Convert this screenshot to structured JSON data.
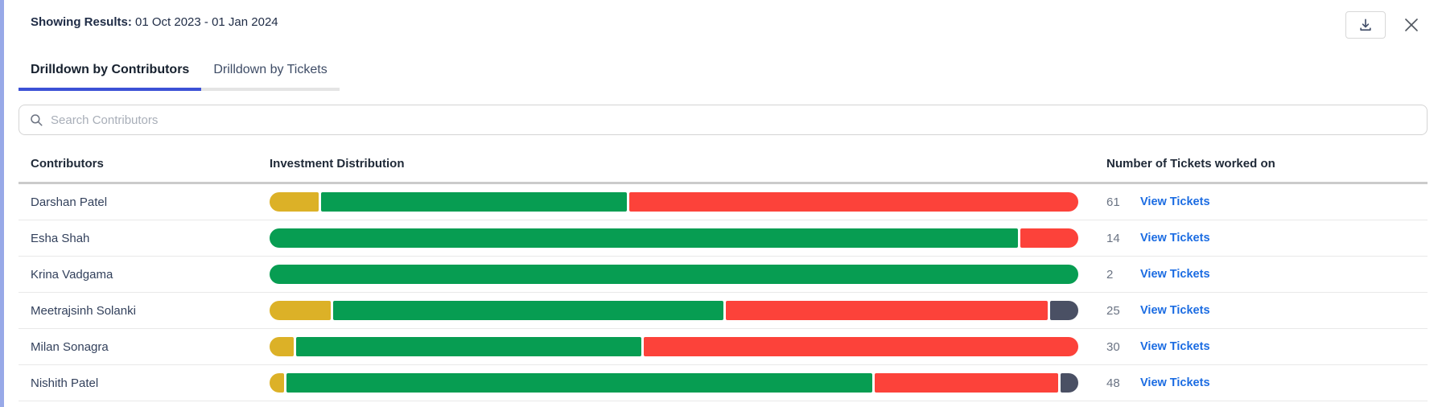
{
  "header": {
    "results_label": "Showing Results:",
    "results_value": "01 Oct 2023 - 01 Jan 2024"
  },
  "toolbar": {
    "download_icon": "download-icon",
    "close_icon": "close-icon"
  },
  "tabs": [
    {
      "label": "Drilldown by Contributors",
      "active": true
    },
    {
      "label": "Drilldown by Tickets",
      "active": false
    }
  ],
  "search": {
    "placeholder": "Search Contributors",
    "value": "",
    "icon": "search-icon"
  },
  "table": {
    "columns": {
      "contributors": "Contributors",
      "distribution": "Investment Distribution",
      "tickets": "Number of Tickets worked on"
    },
    "view_tickets_label": "View Tickets",
    "rows": [
      {
        "name": "Darshan Patel",
        "tickets": "61",
        "segments": [
          {
            "color": "yellow",
            "pct": 6.1
          },
          {
            "color": "green",
            "pct": 37.8
          },
          {
            "color": "red",
            "pct": 55.6
          }
        ]
      },
      {
        "name": "Esha Shah",
        "tickets": "14",
        "segments": [
          {
            "color": "green",
            "pct": 92.8
          },
          {
            "color": "red",
            "pct": 7.2
          }
        ]
      },
      {
        "name": "Krina Vadgama",
        "tickets": "2",
        "segments": [
          {
            "color": "green",
            "pct": 100
          }
        ]
      },
      {
        "name": "Meetrajsinh Solanki",
        "tickets": "25",
        "segments": [
          {
            "color": "yellow",
            "pct": 7.6
          },
          {
            "color": "green",
            "pct": 48.4
          },
          {
            "color": "red",
            "pct": 40.0
          },
          {
            "color": "dark",
            "pct": 3.5
          }
        ]
      },
      {
        "name": "Milan Sonagra",
        "tickets": "30",
        "segments": [
          {
            "color": "yellow",
            "pct": 3.0
          },
          {
            "color": "green",
            "pct": 42.9
          },
          {
            "color": "red",
            "pct": 54.1
          }
        ]
      },
      {
        "name": "Nishith Patel",
        "tickets": "48",
        "segments": [
          {
            "color": "yellow",
            "pct": 1.8
          },
          {
            "color": "green",
            "pct": 72.0
          },
          {
            "color": "red",
            "pct": 22.5
          },
          {
            "color": "dark",
            "pct": 2.2
          }
        ]
      }
    ]
  },
  "colors": {
    "yellow": "#dcb127",
    "green": "#079d52",
    "red": "#fc423a",
    "dark": "#4a5064",
    "accent": "#3c51d6",
    "link": "#1b6ce2"
  }
}
